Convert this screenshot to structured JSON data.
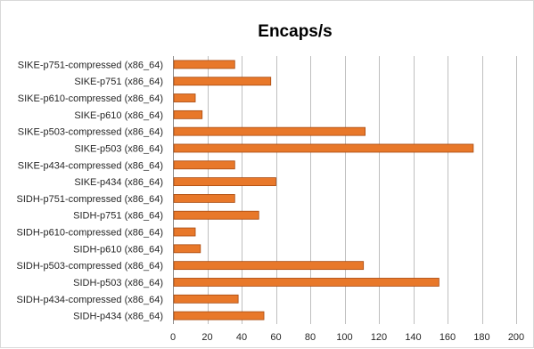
{
  "chart_data": {
    "type": "bar",
    "orientation": "horizontal",
    "title": "Encaps/s",
    "xlabel": "",
    "ylabel": "",
    "xlim": [
      0,
      200
    ],
    "xticks": [
      0,
      20,
      40,
      60,
      80,
      100,
      120,
      140,
      160,
      180,
      200
    ],
    "grid": "vertical",
    "legend": "none",
    "bar_color": "#e8782a",
    "bar_edge_color": "#a84a10",
    "categories": [
      "SIKE-p751-compressed (x86_64)",
      "SIKE-p751 (x86_64)",
      "SIKE-p610-compressed (x86_64)",
      "SIKE-p610 (x86_64)",
      "SIKE-p503-compressed (x86_64)",
      "SIKE-p503 (x86_64)",
      "SIKE-p434-compressed (x86_64)",
      "SIKE-p434 (x86_64)",
      "SIDH-p751-compressed (x86_64)",
      "SIDH-p751 (x86_64)",
      "SIDH-p610-compressed (x86_64)",
      "SIDH-p610 (x86_64)",
      "SIDH-p503-compressed (x86_64)",
      "SIDH-p503 (x86_64)",
      "SIDH-p434-compressed (x86_64)",
      "SIDH-p434 (x86_64)"
    ],
    "values": [
      36,
      57,
      13,
      17,
      112,
      175,
      36,
      60,
      36,
      50,
      13,
      16,
      111,
      155,
      38,
      53
    ]
  }
}
